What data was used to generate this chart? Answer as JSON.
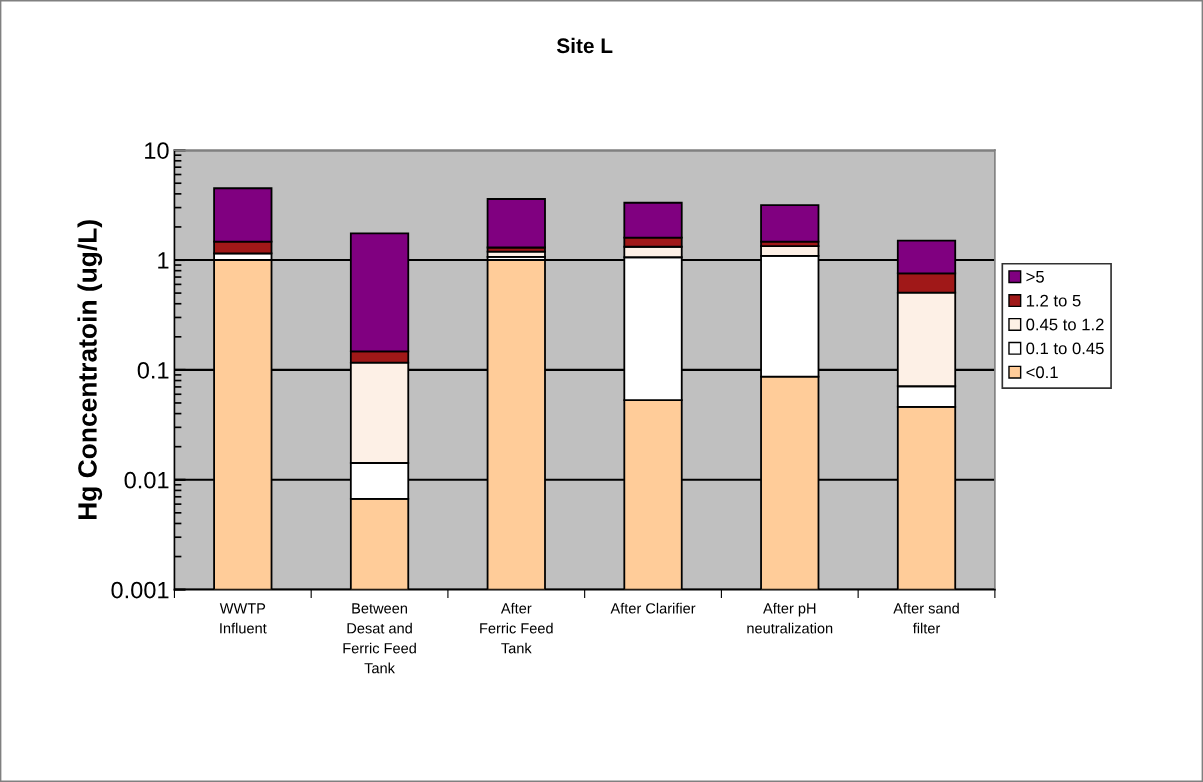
{
  "chart_data": {
    "type": "bar",
    "title": "Site L",
    "ylabel": "Hg Concentratoin (ug/L)",
    "categories": [
      "WWTP\nInfluent",
      "Between\nDesat and\nFerric Feed\nTank",
      "After\nFerric Feed\nTank",
      "After Clarifier",
      "After pH\nneutralization",
      "After sand\nfilter"
    ],
    "stacked": true,
    "log": "y",
    "series": [
      {
        "name": "<0.1",
        "color": "#ffcc99",
        "values": [
          1.0,
          0.0067,
          1.0,
          0.053,
          0.087,
          0.046
        ]
      },
      {
        "name": "0.1 to 0.45",
        "color": "#ffffff",
        "values": [
          0.15,
          0.0075,
          0.07,
          1.007,
          1.003,
          0.025
        ]
      },
      {
        "name": "0.45 to 1.2",
        "color": "#fdf0e6",
        "values": [
          null,
          0.102,
          0.12,
          0.26,
          0.25,
          0.434
        ]
      },
      {
        "name": "1.2 to 5",
        "color": "#a01818",
        "values": [
          0.32,
          0.031,
          0.11,
          0.28,
          0.13,
          0.252
        ]
      },
      {
        "name": ">5",
        "color": "#800080",
        "values": [
          3.03,
          1.6,
          2.29,
          1.72,
          1.69,
          0.743
        ]
      }
    ],
    "ylim": [
      0.001,
      10
    ],
    "yticks": [
      {
        "value": 0.001,
        "label": "0.001"
      },
      {
        "value": 0.01,
        "label": "0.01"
      },
      {
        "value": 0.1,
        "label": "0.1"
      },
      1,
      10
    ],
    "grid": "y",
    "legend": "right"
  }
}
